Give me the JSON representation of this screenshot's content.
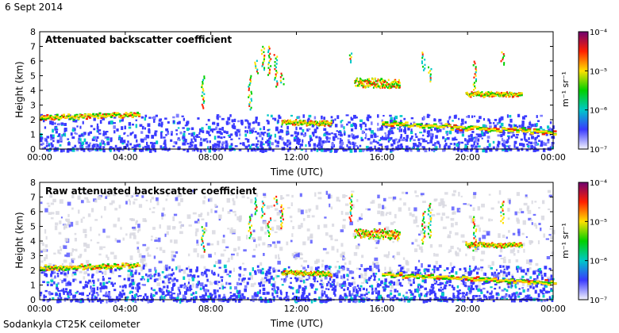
{
  "header": {
    "date": "6 Sept 2014"
  },
  "footer": {
    "instrument": "Sodankyla CT25K ceilometer"
  },
  "chart_data": [
    {
      "type": "heatmap",
      "title": "Attenuated backscatter coefficient",
      "xlabel": "Time (UTC)",
      "ylabel": "Height (km)",
      "xticks": [
        "00:00",
        "04:00",
        "08:00",
        "12:00",
        "16:00",
        "20:00",
        "00:00"
      ],
      "xlim_hours": [
        0,
        24
      ],
      "yticks": [
        0,
        1,
        2,
        3,
        4,
        5,
        6,
        7,
        8
      ],
      "ylim": [
        0,
        8
      ],
      "colorbar": {
        "scale": "log",
        "min_exp": -7,
        "max_exp": -4,
        "ticks": [
          "10⁻⁷",
          "10⁻⁶",
          "10⁻⁵",
          "10⁻⁴"
        ],
        "unit": "m⁻¹ sr⁻¹",
        "colors": [
          "#f4f4ff",
          "#3a3aff",
          "#00c8c8",
          "#00d000",
          "#ffe000",
          "#ff2000",
          "#700070"
        ]
      },
      "features": [
        {
          "name": "boundary layer top",
          "t_start": 0,
          "t_end": 4.6,
          "h_start": 2.2,
          "h_end": 2.4
        },
        {
          "name": "mid cloud",
          "t_start": 11.3,
          "t_end": 13.6,
          "h_start": 1.9,
          "h_end": 1.8
        },
        {
          "name": "high cloud",
          "t_start": 14.7,
          "t_end": 16.8,
          "h_start": 4.6,
          "h_end": 4.5
        },
        {
          "name": "evening layer",
          "t_start": 19.9,
          "t_end": 22.5,
          "h_start": 3.8,
          "h_end": 3.8
        },
        {
          "name": "late layer",
          "t_start": 16.0,
          "t_end": 24.0,
          "h_start": 1.8,
          "h_end": 1.2
        }
      ]
    },
    {
      "type": "heatmap",
      "title": "Raw attenuated backscatter coefficient",
      "xlabel": "Time (UTC)",
      "ylabel": "Height (km)",
      "xticks": [
        "00:00",
        "04:00",
        "08:00",
        "12:00",
        "16:00",
        "20:00",
        "00:00"
      ],
      "xlim_hours": [
        0,
        24
      ],
      "yticks": [
        0,
        1,
        2,
        3,
        4,
        5,
        6,
        7,
        8
      ],
      "ylim": [
        0,
        8
      ],
      "colorbar": {
        "scale": "log",
        "min_exp": -7,
        "max_exp": -4,
        "ticks": [
          "10⁻⁷",
          "10⁻⁶",
          "10⁻⁵",
          "10⁻⁴"
        ],
        "unit": "m⁻¹ sr⁻¹",
        "colors": [
          "#f4f4ff",
          "#3a3aff",
          "#00c8c8",
          "#00d000",
          "#ffe000",
          "#ff2000",
          "#700070"
        ]
      },
      "features": [
        {
          "name": "boundary layer top",
          "t_start": 0,
          "t_end": 4.6,
          "h_start": 2.2,
          "h_end": 2.4
        },
        {
          "name": "mid cloud",
          "t_start": 11.3,
          "t_end": 13.6,
          "h_start": 1.9,
          "h_end": 1.8
        },
        {
          "name": "high cloud",
          "t_start": 14.7,
          "t_end": 16.8,
          "h_start": 4.6,
          "h_end": 4.5
        },
        {
          "name": "evening layer",
          "t_start": 19.9,
          "t_end": 22.5,
          "h_start": 3.8,
          "h_end": 3.8
        },
        {
          "name": "late layer",
          "t_start": 16.0,
          "t_end": 24.0,
          "h_start": 1.8,
          "h_end": 1.2
        }
      ]
    }
  ]
}
